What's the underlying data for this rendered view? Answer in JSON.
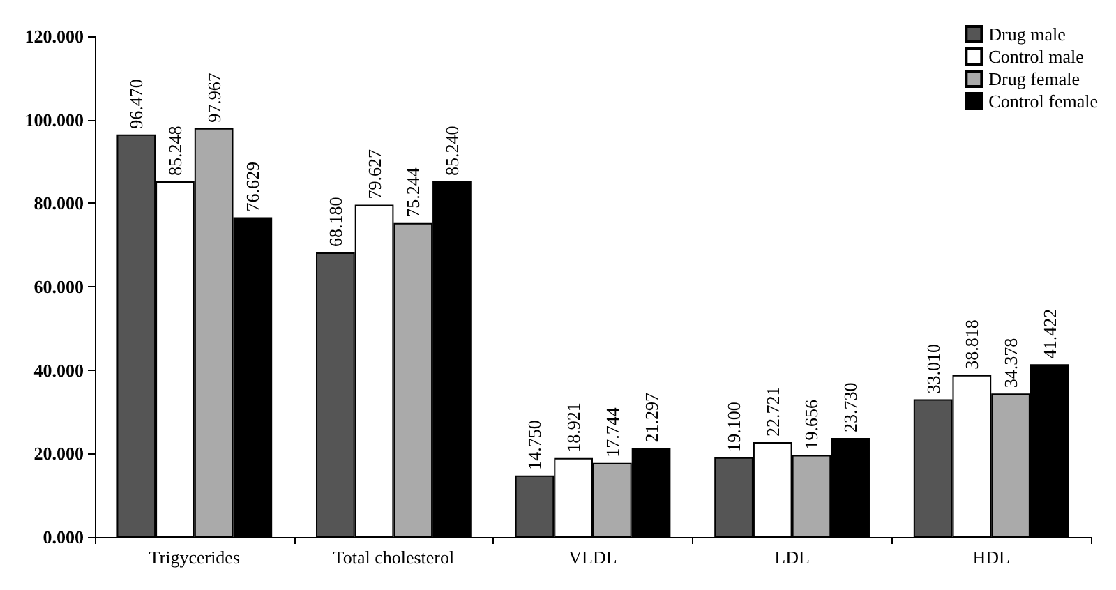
{
  "chart_data": {
    "type": "bar",
    "categories": [
      "Trigycerides",
      "Total cholesterol",
      "VLDL",
      "LDL",
      "HDL"
    ],
    "series": [
      {
        "name": "Drug male",
        "color": "#555555",
        "values": [
          96.47,
          68.18,
          14.75,
          19.1,
          33.01
        ],
        "value_labels": [
          "96.470",
          "68.180",
          "14.750",
          "19.100",
          "33.010"
        ]
      },
      {
        "name": "Control male",
        "color": "#ffffff",
        "values": [
          85.248,
          79.627,
          18.921,
          22.721,
          38.818
        ],
        "value_labels": [
          "85.248",
          "79.627",
          "18.921",
          "22.721",
          "38.818"
        ]
      },
      {
        "name": "Drug female",
        "color": "#aaaaaa",
        "values": [
          97.967,
          75.244,
          17.744,
          19.656,
          34.378
        ],
        "value_labels": [
          "97.967",
          "75.244",
          "17.744",
          "19.656",
          "34.378"
        ]
      },
      {
        "name": "Control female",
        "color": "#000000",
        "values": [
          76.629,
          85.24,
          21.297,
          23.73,
          41.422
        ],
        "value_labels": [
          "76.629",
          "85.240",
          "21.297",
          "23.730",
          "41.422"
        ]
      }
    ],
    "ylim": [
      0,
      120
    ],
    "yticks": [
      {
        "value": 0,
        "label": "0.000"
      },
      {
        "value": 20,
        "label": "20.000"
      },
      {
        "value": 40,
        "label": "40.000"
      },
      {
        "value": 60,
        "label": "60.000"
      },
      {
        "value": 80,
        "label": "80.000"
      },
      {
        "value": 100,
        "label": "100.000"
      },
      {
        "value": 120,
        "label": "120.000"
      }
    ],
    "grid": false,
    "legend": "top right"
  }
}
